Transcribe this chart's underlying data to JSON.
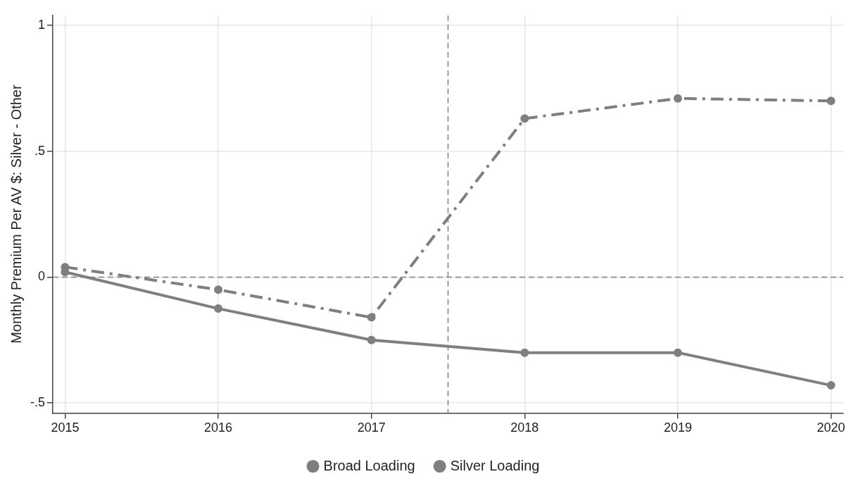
{
  "chart_data": {
    "type": "line",
    "ylabel": "Monthly Premium Per AV $: Silver - Other",
    "x": [
      2015,
      2016,
      2017,
      2018,
      2019,
      2020
    ],
    "series": [
      {
        "name": "Broad Loading",
        "color": "#7f7f7f",
        "values": [
          0.02,
          -0.125,
          -0.25,
          -0.3,
          -0.3,
          -0.43
        ],
        "line_style": "solid"
      },
      {
        "name": "Silver Loading",
        "color": "#7f7f7f",
        "values": [
          0.04,
          -0.05,
          -0.16,
          0.63,
          0.71,
          0.7
        ],
        "line_style": "dashed"
      }
    ],
    "xlim": [
      2014.92,
      2020.08
    ],
    "xticks": [
      2015,
      2016,
      2017,
      2018,
      2019,
      2020
    ],
    "ylim": [
      -0.54,
      1.04
    ],
    "yticks": [
      {
        "value": -0.5,
        "label": "-.5"
      },
      0,
      {
        "value": 0.5,
        "label": ".5"
      },
      1
    ],
    "ref_lines": [
      {
        "axis": "x",
        "value": 2017.5,
        "color": "#7f7f7f",
        "line_style": "dashed"
      },
      {
        "axis": "y",
        "value": 0,
        "color": "#7f7f7f",
        "line_style": "dashed"
      }
    ],
    "grid": true,
    "legend": "bottom",
    "marker": "circle"
  }
}
